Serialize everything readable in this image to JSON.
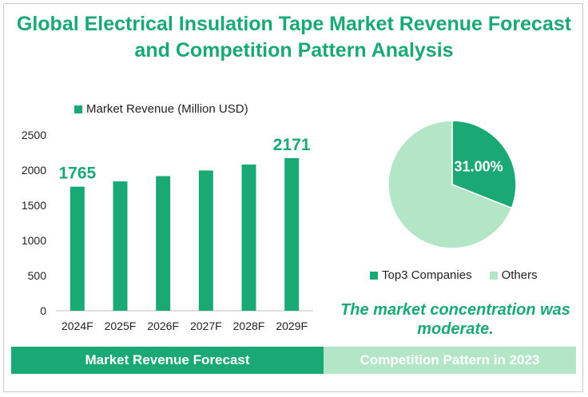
{
  "title": "Global Electrical Insulation Tape Market Revenue Forecast and Competition Pattern Analysis",
  "colors": {
    "primary": "#1aa874",
    "secondary": "#b3e6c6"
  },
  "chart_data": [
    {
      "type": "bar",
      "title": "Market Revenue Forecast",
      "legend": "Market Revenue (Million USD)",
      "categories": [
        "2024F",
        "2025F",
        "2026F",
        "2027F",
        "2028F",
        "2029F"
      ],
      "values": [
        1765,
        1840,
        1915,
        1995,
        2080,
        2171
      ],
      "data_labels": [
        {
          "index": 0,
          "text": "1765"
        },
        {
          "index": 5,
          "text": "2171"
        }
      ],
      "ylim": [
        0,
        2500
      ],
      "yticks": [
        0,
        500,
        1000,
        1500,
        2000,
        2500
      ],
      "xlabel": "",
      "ylabel": "",
      "grid": false
    },
    {
      "type": "pie",
      "title": "Competition Pattern in 2023",
      "slices": [
        {
          "label": "Top3 Companies",
          "value": 31.0,
          "color": "#1aa874",
          "display": "31.00%"
        },
        {
          "label": "Others",
          "value": 69.0,
          "color": "#b3e6c6",
          "display": ""
        }
      ],
      "legend_position": "bottom"
    }
  ],
  "conclusion": "The market concentration was moderate.",
  "footer": {
    "left": "Market Revenue Forecast",
    "right": "Competition Pattern in 2023"
  }
}
